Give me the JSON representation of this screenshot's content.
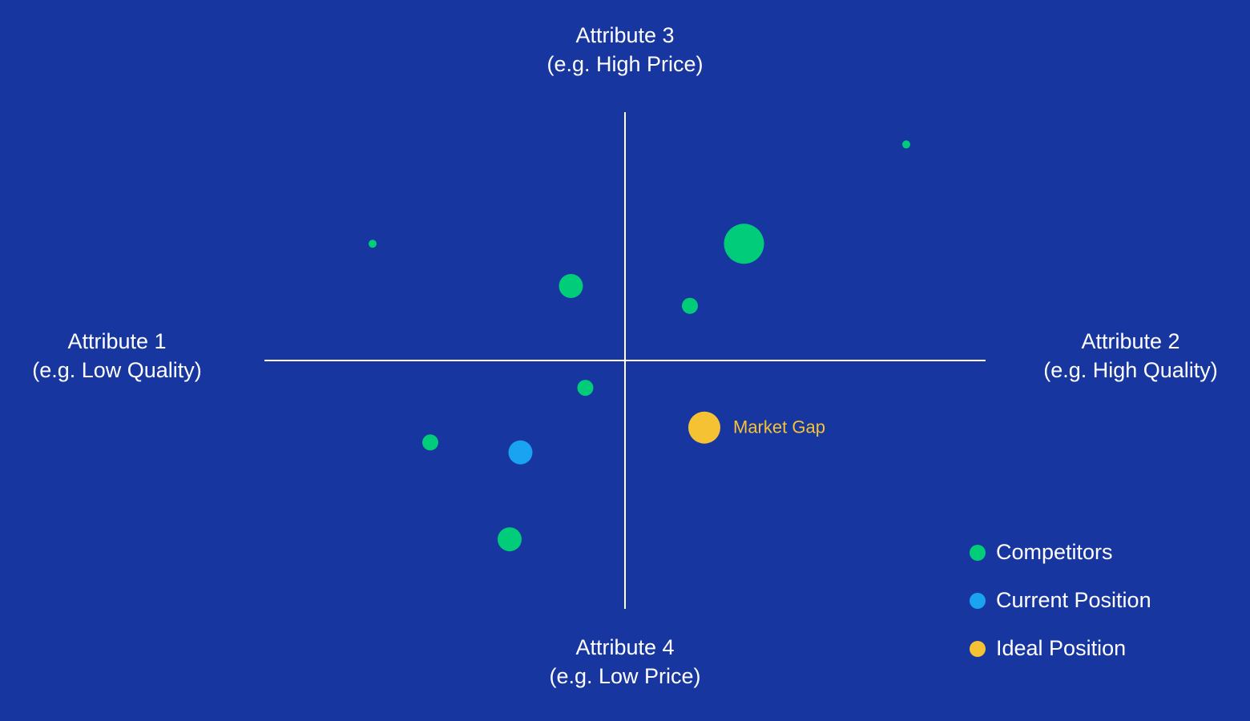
{
  "chart_data": {
    "type": "bubble",
    "axis_labels": {
      "top": [
        "Attribute 3",
        "(e.g. High Price)"
      ],
      "bottom": [
        "Attribute 4",
        "(e.g. Low Price)"
      ],
      "left": [
        "Attribute 1",
        "(e.g. Low Quality)"
      ],
      "right": [
        "Attribute 2",
        "(e.g. High Quality)"
      ]
    },
    "xlim": [
      -10,
      10
    ],
    "ylim": [
      -10,
      10
    ],
    "legend": "bottom-right",
    "series": [
      {
        "name": "Competitors",
        "color": "#00cc7a",
        "x": [
          7.8,
          3.3,
          -7.0,
          -1.5,
          1.8,
          -1.1,
          -5.4,
          -3.2
        ],
        "values": [
          8.7,
          4.7,
          4.7,
          3.0,
          2.2,
          -1.1,
          -3.3,
          -7.2
        ],
        "sizes": [
          1,
          5,
          1,
          3,
          2,
          2,
          2,
          3
        ]
      },
      {
        "name": "Current Position",
        "color": "#1aa3f0",
        "x": [
          -2.9
        ],
        "values": [
          -3.7
        ],
        "sizes": [
          3
        ]
      },
      {
        "name": "Ideal Position",
        "color": "#f5c233",
        "x": [
          2.2
        ],
        "values": [
          -2.7
        ],
        "sizes": [
          4
        ],
        "point_labels": [
          "Market Gap"
        ]
      }
    ]
  }
}
